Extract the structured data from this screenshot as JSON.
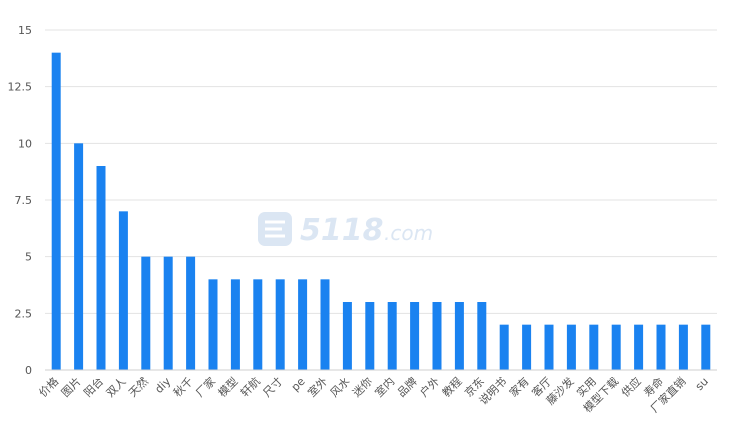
{
  "watermark": {
    "brand": "5118",
    "suffix": ".com"
  },
  "chart_data": {
    "type": "bar",
    "categories": [
      "价格",
      "图片",
      "阳台",
      "双人",
      "天然",
      "diy",
      "秋千",
      "厂家",
      "模型",
      "轩航",
      "尺寸",
      "pe",
      "室外",
      "风水",
      "迷你",
      "室内",
      "品牌",
      "户外",
      "教程",
      "京东",
      "说明书",
      "家有",
      "客厅",
      "藤沙发",
      "实用",
      "模型下载",
      "供应",
      "寿命",
      "厂家直销",
      "su"
    ],
    "values": [
      14,
      10,
      9,
      7,
      5,
      5,
      5,
      4,
      4,
      4,
      4,
      4,
      4,
      3,
      3,
      3,
      3,
      3,
      3,
      3,
      2,
      2,
      2,
      2,
      2,
      2,
      2,
      2,
      2,
      2
    ],
    "yticks": [
      "0",
      "2.5",
      "5",
      "7.5",
      "10",
      "12.5",
      "15"
    ],
    "ylim": [
      0,
      15
    ],
    "color": "#1a82f0",
    "grid": true
  }
}
